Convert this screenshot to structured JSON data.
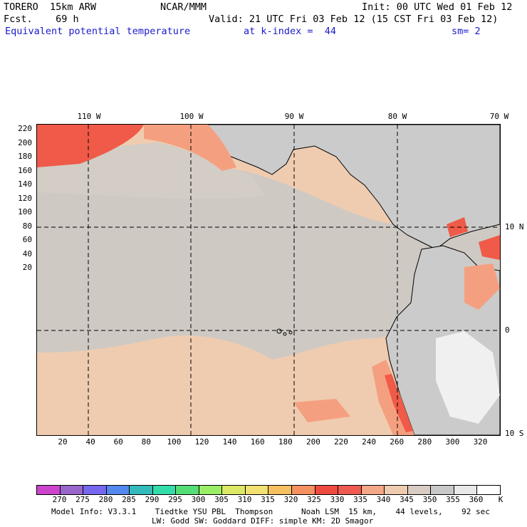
{
  "header": {
    "line1_left": "TORERO  15km ARW",
    "line1_mid": "NCAR/MMM",
    "line1_right": "Init: 00 UTC Wed 01 Feb 12",
    "line2_left": "Fcst.    69 h",
    "line2_right": "Valid: 21 UTC Fri 03 Feb 12 (15 CST Fri 03 Feb 12)",
    "line3_field": "Equivalent potential temperature",
    "line3_level": "at k-index =  44",
    "line3_sm": "sm= 2"
  },
  "map": {
    "lon_labels": [
      "110 W",
      "100 W",
      "90 W",
      "80 W",
      "70 W"
    ],
    "lat_labels": [
      "10 N",
      "0",
      "10 S"
    ],
    "y_ticks": [
      "220",
      "200",
      "180",
      "160",
      "140",
      "120",
      "100",
      "80",
      "60",
      "40",
      "20"
    ],
    "x_ticks": [
      "20",
      "40",
      "60",
      "80",
      "100",
      "120",
      "140",
      "160",
      "180",
      "200",
      "220",
      "240",
      "260",
      "280",
      "300",
      "320"
    ],
    "regions": {
      "ocean_warm": "#efccb0",
      "band_cool": "#cfc9c3",
      "land": "#cbcbcb",
      "hot": "#f4a080",
      "hotter": "#f05a48"
    }
  },
  "colorbar": {
    "unit": "K",
    "levels": [
      "270",
      "275",
      "280",
      "285",
      "290",
      "295",
      "300",
      "305",
      "310",
      "315",
      "320",
      "325",
      "330",
      "335",
      "340",
      "345",
      "350",
      "355",
      "360"
    ],
    "colors": [
      "#cc44cc",
      "#9966cc",
      "#7766ee",
      "#5588ee",
      "#33bbbb",
      "#33ddaa",
      "#55dd77",
      "#99ee66",
      "#dde866",
      "#f2e070",
      "#f5c060",
      "#f59060",
      "#ef4a40",
      "#ee5a50",
      "#f4a888",
      "#efccb0",
      "#d8ccc4",
      "#c8c8c8",
      "#e8e8e8",
      "#ffffff"
    ]
  },
  "footer": {
    "line1": "Model Info: V3.3.1    Tiedtke YSU PBL  Thompson      Noah LSM  15 km,    44 levels,    92 sec",
    "line2": "LW: Godd SW: Goddard DIFF: simple KM: 2D Smagor"
  }
}
